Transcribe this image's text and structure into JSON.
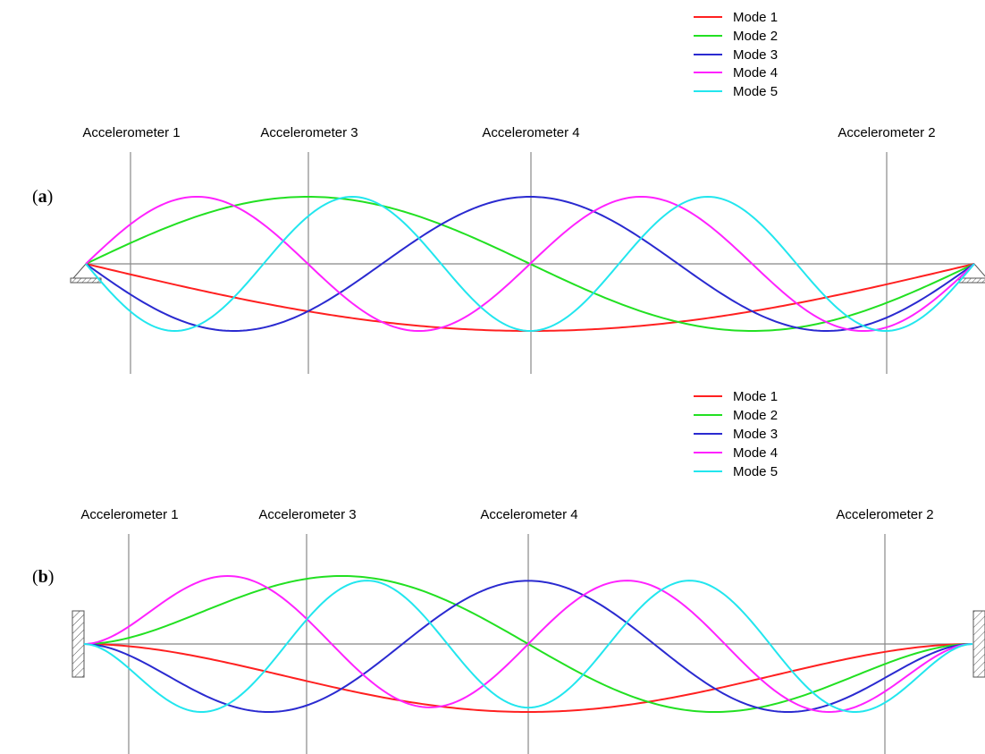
{
  "panels": [
    {
      "id": "a",
      "label_prefix": "(",
      "label_letter": "a",
      "label_suffix": ")",
      "support": "pinned",
      "legend": [
        "Mode 1",
        "Mode 2",
        "Mode 3",
        "Mode 4",
        "Mode 5"
      ],
      "accelerometers": [
        "Accelerometer 1",
        "Accelerometer 3",
        "Accelerometer 4",
        "Accelerometer 2"
      ]
    },
    {
      "id": "b",
      "label_prefix": "(",
      "label_letter": "b",
      "label_suffix": ")",
      "support": "clamped",
      "legend": [
        "Mode 1",
        "Mode 2",
        "Mode 3",
        "Mode 4",
        "Mode 5"
      ],
      "accelerometers": [
        "Accelerometer 1",
        "Accelerometer 3",
        "Accelerometer 4",
        "Accelerometer 2"
      ]
    }
  ],
  "colors": {
    "mode_1": "#ff2020",
    "mode_2": "#22e022",
    "mode_3": "#2a2ad0",
    "mode_4": "#ff22ff",
    "mode_5": "#22e6ee",
    "beam": "#888888",
    "support": "#555555"
  }
}
